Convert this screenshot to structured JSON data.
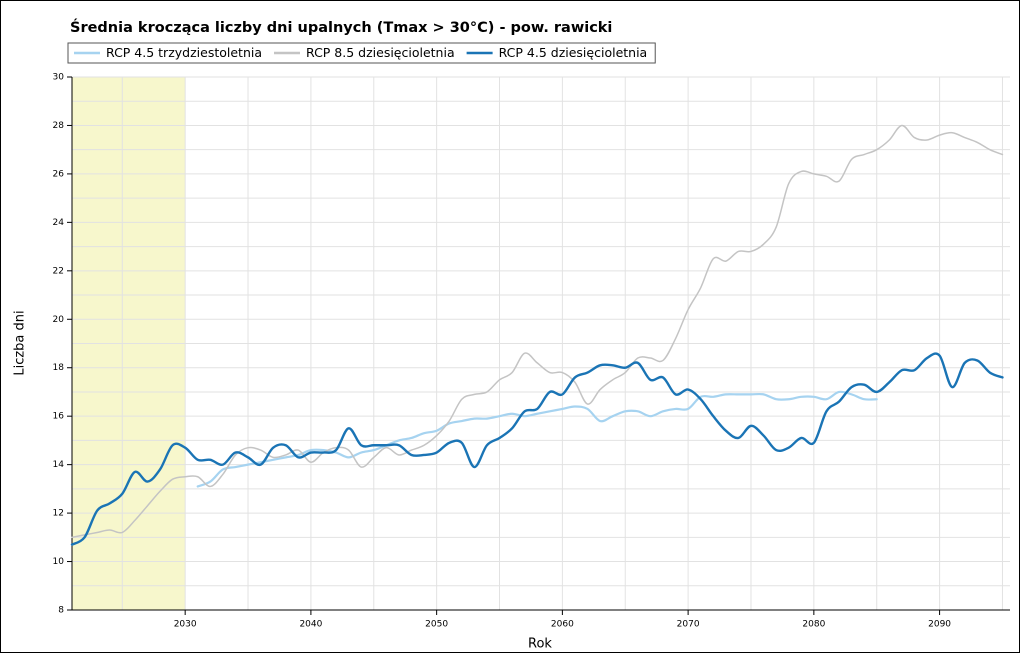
{
  "chart_data": {
    "type": "line",
    "title": "Średnia krocząca liczby dni upalnych (Tmax > 30°C) - pow. rawicki",
    "x_label": "Rok",
    "y_label": "Liczba dni",
    "x": [
      2021,
      2022,
      2023,
      2024,
      2025,
      2026,
      2027,
      2028,
      2029,
      2030,
      2031,
      2032,
      2033,
      2034,
      2035,
      2036,
      2037,
      2038,
      2039,
      2040,
      2041,
      2042,
      2043,
      2044,
      2045,
      2046,
      2047,
      2048,
      2049,
      2050,
      2051,
      2052,
      2053,
      2054,
      2055,
      2056,
      2057,
      2058,
      2059,
      2060,
      2061,
      2062,
      2063,
      2064,
      2065,
      2066,
      2067,
      2068,
      2069,
      2070,
      2071,
      2072,
      2073,
      2074,
      2075,
      2076,
      2077,
      2078,
      2079,
      2080,
      2081,
      2082,
      2083,
      2084,
      2085,
      2086,
      2087,
      2088,
      2089,
      2090,
      2091,
      2092,
      2093,
      2094,
      2095
    ],
    "series": [
      {
        "name": "RCP 4.5 trzydziestoletnia",
        "color": "#a6d3f0",
        "width": 2.2,
        "values": [
          null,
          null,
          null,
          null,
          null,
          null,
          null,
          null,
          null,
          null,
          13.1,
          13.3,
          13.8,
          13.9,
          14.0,
          14.1,
          14.2,
          14.3,
          14.4,
          14.6,
          14.6,
          14.5,
          14.3,
          14.5,
          14.6,
          14.8,
          15.0,
          15.1,
          15.3,
          15.4,
          15.7,
          15.8,
          15.9,
          15.9,
          16.0,
          16.1,
          16.0,
          16.1,
          16.2,
          16.3,
          16.4,
          16.3,
          15.8,
          16.0,
          16.2,
          16.2,
          16.0,
          16.2,
          16.3,
          16.3,
          16.8,
          16.8,
          16.9,
          16.9,
          16.9,
          16.9,
          16.7,
          16.7,
          16.8,
          16.8,
          16.7,
          17.0,
          16.9,
          16.7,
          16.7,
          null,
          null,
          null,
          null,
          null,
          null,
          null,
          null,
          null,
          null
        ]
      },
      {
        "name": "RCP 8.5 dziesięcioletnia",
        "color": "#c4c4c4",
        "width": 1.5,
        "values": [
          11.0,
          11.1,
          11.2,
          11.3,
          11.2,
          11.7,
          12.3,
          12.9,
          13.4,
          13.5,
          13.5,
          13.1,
          13.6,
          14.4,
          14.7,
          14.6,
          14.3,
          14.4,
          14.6,
          14.1,
          14.5,
          14.7,
          14.6,
          13.9,
          14.3,
          14.7,
          14.4,
          14.6,
          14.8,
          15.2,
          15.8,
          16.7,
          16.9,
          17.0,
          17.5,
          17.8,
          18.6,
          18.2,
          17.8,
          17.8,
          17.4,
          16.5,
          17.1,
          17.5,
          17.8,
          18.4,
          18.4,
          18.3,
          19.2,
          20.4,
          21.3,
          22.5,
          22.4,
          22.8,
          22.8,
          23.1,
          23.8,
          25.6,
          26.1,
          26.0,
          25.9,
          25.7,
          26.6,
          26.8,
          27.0,
          27.4,
          28.0,
          27.5,
          27.4,
          27.6,
          27.7,
          27.5,
          27.3,
          27.0,
          26.8
        ]
      },
      {
        "name": "RCP 4.5 dziesięcioletnia",
        "color": "#1a74b5",
        "width": 2.4,
        "values": [
          10.7,
          11.0,
          12.1,
          12.4,
          12.8,
          13.7,
          13.3,
          13.8,
          14.8,
          14.7,
          14.2,
          14.2,
          14.0,
          14.5,
          14.3,
          14.0,
          14.7,
          14.8,
          14.3,
          14.5,
          14.5,
          14.6,
          15.5,
          14.8,
          14.8,
          14.8,
          14.8,
          14.4,
          14.4,
          14.5,
          14.9,
          14.9,
          13.9,
          14.8,
          15.1,
          15.5,
          16.2,
          16.3,
          17.0,
          16.9,
          17.6,
          17.8,
          18.1,
          18.1,
          18.0,
          18.2,
          17.5,
          17.6,
          16.9,
          17.1,
          16.7,
          16.0,
          15.4,
          15.1,
          15.6,
          15.2,
          14.6,
          14.7,
          15.1,
          14.9,
          16.2,
          16.6,
          17.2,
          17.3,
          17.0,
          17.4,
          17.9,
          17.9,
          18.4,
          18.5,
          17.2,
          18.2,
          18.3,
          17.8,
          17.6
        ]
      }
    ],
    "xlim": [
      2021,
      2095.6
    ],
    "ylim": [
      8,
      30
    ],
    "xticks": [
      2030,
      2040,
      2050,
      2060,
      2070,
      2080,
      2090
    ],
    "yticks": [
      8,
      10,
      12,
      14,
      16,
      18,
      20,
      22,
      24,
      26,
      28,
      30
    ],
    "xgrid": [
      2025,
      2030,
      2035,
      2040,
      2045,
      2050,
      2055,
      2060,
      2065,
      2070,
      2075,
      2080,
      2085,
      2090,
      2095
    ],
    "ygrid": [
      9,
      10,
      11,
      12,
      13,
      14,
      15,
      16,
      17,
      18,
      19,
      20,
      21,
      22,
      23,
      24,
      25,
      26,
      27,
      28,
      29,
      30
    ],
    "highlight": {
      "range": [
        2021,
        2030
      ],
      "color": "#f7f7cc"
    },
    "grid": true
  }
}
